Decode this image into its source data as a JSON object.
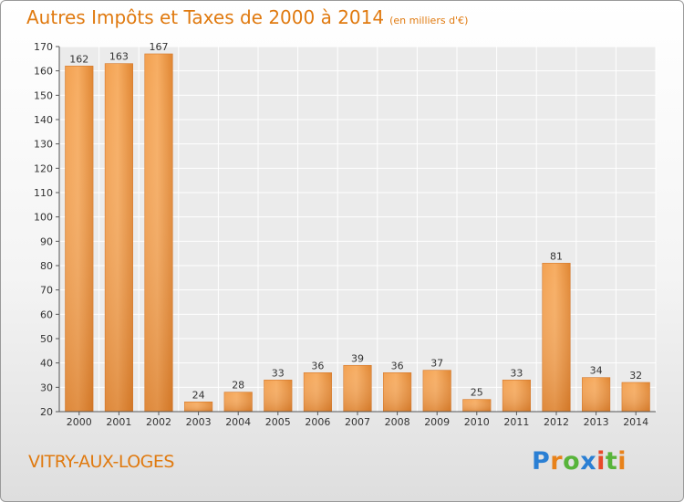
{
  "title": "Autres Impôts et Taxes de 2000 à 2014",
  "unit": "(en milliers d'€)",
  "commune": "VITRY-AUX-LOGES",
  "logo": {
    "text": "Proxiti",
    "letter_colors": [
      "#2a7fd4",
      "#e8821a",
      "#58b43a",
      "#2a7fd4",
      "#e84a2a",
      "#58b43a",
      "#e8821a"
    ]
  },
  "colors": {
    "accent": "#e07a10",
    "bar_light": "#f7a95a",
    "bar_dark": "#d8761e"
  },
  "chart_data": {
    "type": "bar",
    "title": "Autres Impôts et Taxes de 2000 à 2014",
    "subtitle": "(en milliers d'€)",
    "xlabel": "",
    "ylabel": "",
    "categories": [
      "2000",
      "2001",
      "2002",
      "2003",
      "2004",
      "2005",
      "2006",
      "2007",
      "2008",
      "2009",
      "2010",
      "2011",
      "2012",
      "2013",
      "2014"
    ],
    "values": [
      162,
      163,
      167,
      24,
      28,
      33,
      36,
      39,
      36,
      37,
      25,
      33,
      81,
      34,
      32
    ],
    "ylim": [
      20,
      170
    ],
    "yticks": [
      20,
      30,
      40,
      50,
      60,
      70,
      80,
      90,
      100,
      110,
      120,
      130,
      140,
      150,
      160,
      170
    ],
    "grid": true,
    "legend": "none"
  }
}
